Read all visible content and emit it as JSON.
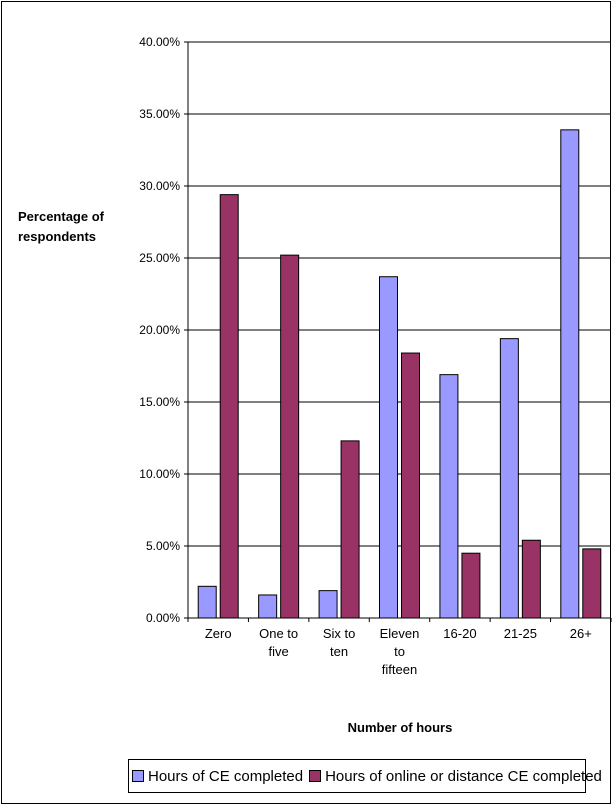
{
  "chart_data": {
    "type": "bar",
    "categories": [
      [
        "Zero"
      ],
      [
        "One to",
        "five"
      ],
      [
        "Six to",
        "ten"
      ],
      [
        "Eleven",
        "to",
        "fifteen"
      ],
      [
        "16-20"
      ],
      [
        "21-25"
      ],
      [
        "26+"
      ]
    ],
    "series": [
      {
        "name": "Hours of CE completed",
        "color": "#9999ff",
        "values": [
          2.2,
          1.6,
          1.9,
          23.7,
          16.9,
          19.4,
          33.9
        ]
      },
      {
        "name": "Hours of online or distance CE completed",
        "color": "#993366",
        "values": [
          29.4,
          25.2,
          12.3,
          18.4,
          4.5,
          5.4,
          4.8
        ]
      }
    ],
    "ylim": [
      0,
      40
    ],
    "yticks": [
      "0.00%",
      "5.00%",
      "10.00%",
      "15.00%",
      "20.00%",
      "25.00%",
      "30.00%",
      "35.00%",
      "40.00%"
    ],
    "ylabel": [
      "Percentage of",
      "respondents"
    ],
    "xlabel": "Number of hours",
    "grid": true,
    "legend_position": "bottom"
  }
}
